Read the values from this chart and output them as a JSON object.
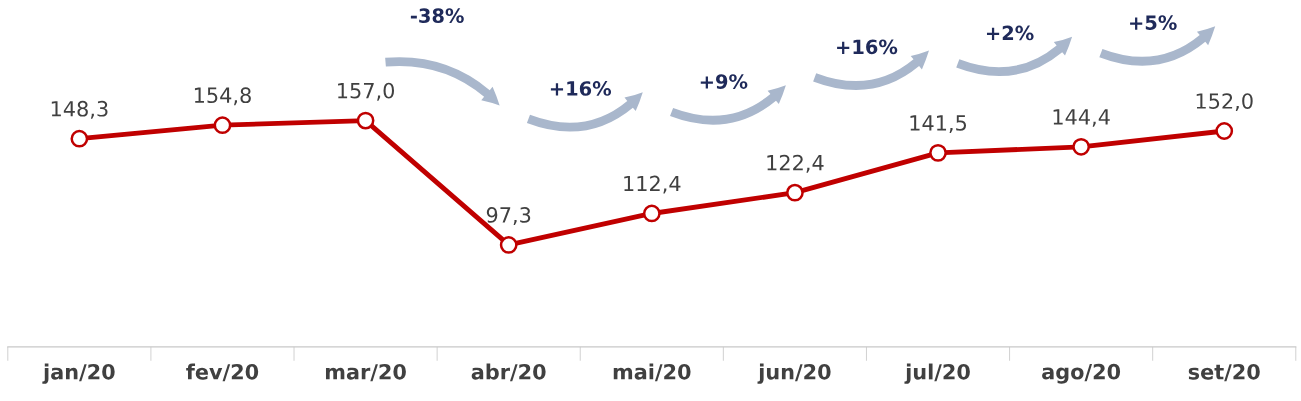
{
  "chart_data": {
    "type": "line",
    "categories": [
      "jan/20",
      "fev/20",
      "mar/20",
      "abr/20",
      "mai/20",
      "jun/20",
      "jul/20",
      "ago/20",
      "set/20"
    ],
    "series": [
      {
        "color": "#c00000",
        "values": [
          148.3,
          154.8,
          157.0,
          97.3,
          112.4,
          122.4,
          141.5,
          144.4,
          152.0
        ],
        "value_labels": [
          "148,3",
          "154,8",
          "157,0",
          "97,3",
          "112,4",
          "122,4",
          "141,5",
          "144,4",
          "152,0"
        ]
      }
    ],
    "marker": "circle",
    "line_style": "solid",
    "grid": false,
    "tick_labels": "x",
    "annotations": [
      "-38%",
      "+16%",
      "+9%",
      "+16%",
      "+2%",
      "+5%"
    ]
  }
}
